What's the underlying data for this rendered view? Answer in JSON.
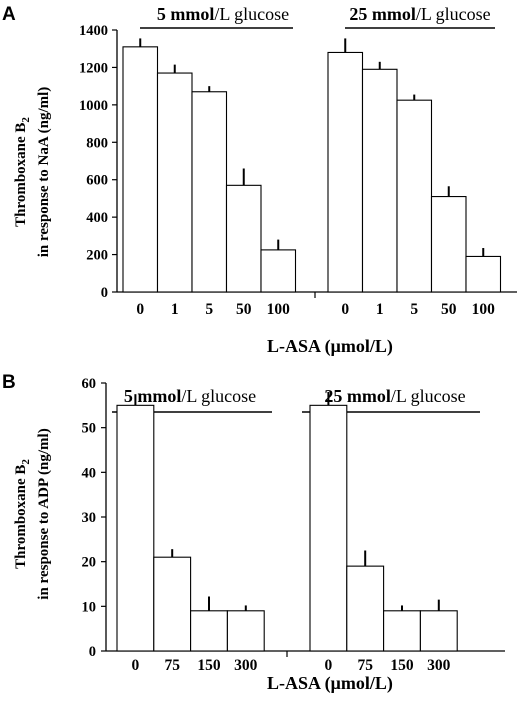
{
  "chart_data": [
    {
      "type": "bar",
      "panel": "A",
      "ylabel_line1_main": "Thromboxane B",
      "ylabel_line1_sub": "2",
      "ylabel_line2": "in response to NaA (ng/ml)",
      "xlabel": "L-ASA (µmol/L)",
      "ylim": [
        0,
        1400
      ],
      "yticks": [
        "0",
        "200",
        "400",
        "600",
        "800",
        "1000",
        "1200",
        "1400"
      ],
      "groups": [
        {
          "label_bold": "5 mmol",
          "label_rest": "/L glucose",
          "categories": [
            "0",
            "1",
            "5",
            "50",
            "100"
          ],
          "values": [
            1310,
            1170,
            1070,
            570,
            225
          ],
          "errors": [
            45,
            45,
            30,
            90,
            55
          ]
        },
        {
          "label_bold": "25 mmol",
          "label_rest": "/L glucose",
          "categories": [
            "0",
            "1",
            "5",
            "50",
            "100"
          ],
          "values": [
            1280,
            1190,
            1025,
            510,
            190
          ],
          "errors": [
            75,
            40,
            30,
            55,
            45
          ]
        }
      ]
    },
    {
      "type": "bar",
      "panel": "B",
      "ylabel_line1_main": "Thromboxane B",
      "ylabel_line1_sub": "2",
      "ylabel_line2": "in response to ADP (ng/ml)",
      "xlabel": "L-ASA (µmol/L)",
      "ylim": [
        0,
        60
      ],
      "yticks": [
        "0",
        "10",
        "20",
        "30",
        "40",
        "50",
        "60"
      ],
      "groups": [
        {
          "label_bold": "5 mmol",
          "label_rest": "/L glucose",
          "categories": [
            "0",
            "75",
            "150",
            "300"
          ],
          "values": [
            55,
            21,
            9,
            9
          ],
          "errors": [
            2.5,
            1.8,
            3.2,
            1.2
          ]
        },
        {
          "label_bold": "25 mmol",
          "label_rest": "/L glucose",
          "categories": [
            "0",
            "75",
            "150",
            "300"
          ],
          "values": [
            55,
            19,
            9,
            9
          ],
          "errors": [
            3,
            3.5,
            1.2,
            2.5
          ]
        }
      ]
    }
  ]
}
